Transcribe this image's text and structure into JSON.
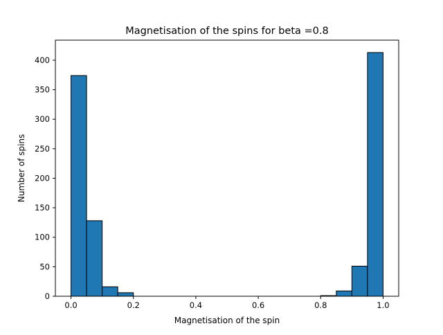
{
  "chart_data": {
    "type": "bar",
    "title": "Magnetisation of the spins for beta =0.8",
    "xlabel": "Magnetisation of the spin",
    "ylabel": "Number of spins",
    "xlim": [
      -0.05,
      1.05
    ],
    "ylim": [
      0,
      434
    ],
    "grid": false,
    "bar_color": "#1f77b4",
    "edge_color": "#000000",
    "bin_width": 0.05,
    "bins": [
      {
        "x0": 0.0,
        "x1": 0.05,
        "value": 374
      },
      {
        "x0": 0.05,
        "x1": 0.1,
        "value": 128
      },
      {
        "x0": 0.1,
        "x1": 0.15,
        "value": 16
      },
      {
        "x0": 0.15,
        "x1": 0.2,
        "value": 6
      },
      {
        "x0": 0.2,
        "x1": 0.25,
        "value": 0
      },
      {
        "x0": 0.25,
        "x1": 0.3,
        "value": 0
      },
      {
        "x0": 0.3,
        "x1": 0.35,
        "value": 0
      },
      {
        "x0": 0.35,
        "x1": 0.4,
        "value": 0
      },
      {
        "x0": 0.4,
        "x1": 0.45,
        "value": 0
      },
      {
        "x0": 0.45,
        "x1": 0.5,
        "value": 0
      },
      {
        "x0": 0.5,
        "x1": 0.55,
        "value": 0
      },
      {
        "x0": 0.55,
        "x1": 0.6,
        "value": 0
      },
      {
        "x0": 0.6,
        "x1": 0.65,
        "value": 0
      },
      {
        "x0": 0.65,
        "x1": 0.7,
        "value": 0
      },
      {
        "x0": 0.7,
        "x1": 0.75,
        "value": 0
      },
      {
        "x0": 0.75,
        "x1": 0.8,
        "value": 0
      },
      {
        "x0": 0.8,
        "x1": 0.85,
        "value": 1
      },
      {
        "x0": 0.85,
        "x1": 0.9,
        "value": 9
      },
      {
        "x0": 0.9,
        "x1": 0.95,
        "value": 51
      },
      {
        "x0": 0.95,
        "x1": 1.0,
        "value": 413
      }
    ],
    "x_ticks": [
      0.0,
      0.2,
      0.4,
      0.6,
      0.8,
      1.0
    ],
    "x_tick_labels": [
      "0.0",
      "0.2",
      "0.4",
      "0.6",
      "0.8",
      "1.0"
    ],
    "y_ticks": [
      0,
      50,
      100,
      150,
      200,
      250,
      300,
      350,
      400
    ],
    "y_tick_labels": [
      "0",
      "50",
      "100",
      "150",
      "200",
      "250",
      "300",
      "350",
      "400"
    ]
  }
}
